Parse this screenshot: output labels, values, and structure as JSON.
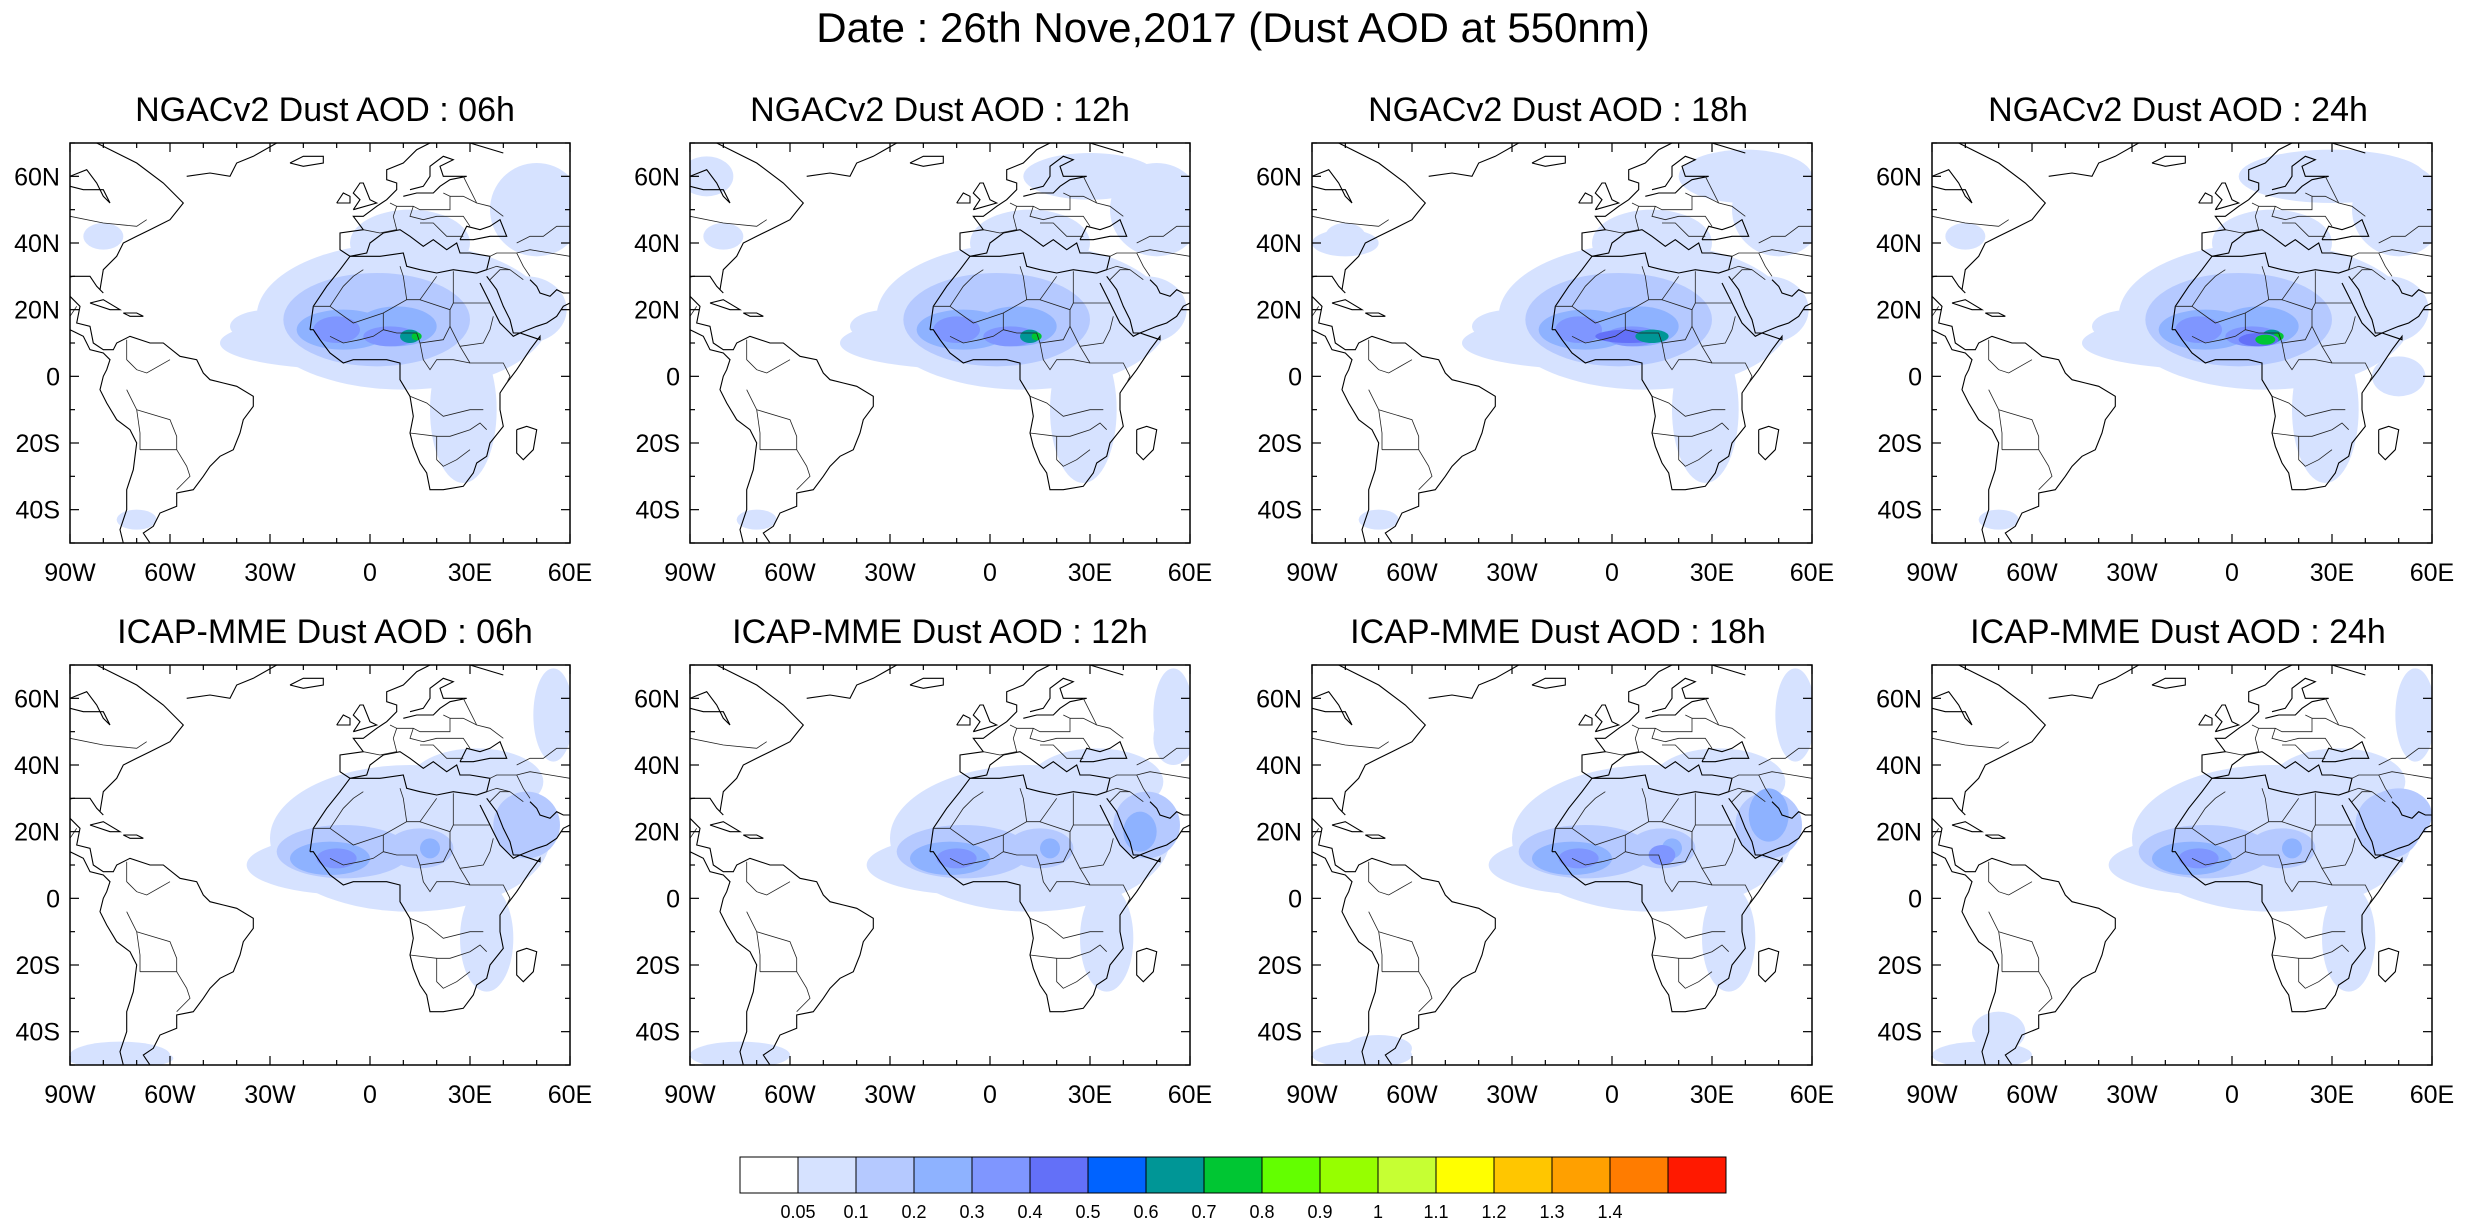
{
  "title": "Date : 26th Nove,2017 (Dust AOD at 550nm)",
  "panels": [
    {
      "title": "NGACv2 Dust AOD : 06h"
    },
    {
      "title": "NGACv2 Dust AOD : 12h"
    },
    {
      "title": "NGACv2 Dust AOD : 18h"
    },
    {
      "title": "NGACv2 Dust AOD : 24h"
    },
    {
      "title": "ICAP-MME Dust AOD : 06h"
    },
    {
      "title": "ICAP-MME Dust AOD : 12h"
    },
    {
      "title": "ICAP-MME Dust AOD : 18h"
    },
    {
      "title": "ICAP-MME Dust AOD : 24h"
    }
  ],
  "axes": {
    "lon_ticks": [
      "90W",
      "60W",
      "30W",
      "0",
      "30E",
      "60E"
    ],
    "lon_values": [
      -90,
      -60,
      -30,
      0,
      30,
      60
    ],
    "lat_ticks": [
      "60N",
      "40N",
      "20N",
      "0",
      "20S",
      "40S"
    ],
    "lat_values": [
      60,
      40,
      20,
      0,
      -20,
      -40
    ],
    "lon_range": [
      -90,
      60
    ],
    "lat_range": [
      -50,
      70
    ]
  },
  "colorbar": {
    "labels": [
      "0.05",
      "0.1",
      "0.2",
      "0.3",
      "0.4",
      "0.5",
      "0.6",
      "0.7",
      "0.8",
      "0.9",
      "1",
      "1.1",
      "1.2",
      "1.3",
      "1.4"
    ],
    "colors": [
      "#ffffff",
      "#d6e2ff",
      "#b5c9ff",
      "#8eb2ff",
      "#7f96ff",
      "#6370f8",
      "#0063ff",
      "#009696",
      "#00c633",
      "#63ff00",
      "#96ff00",
      "#c6ff33",
      "#ffff00",
      "#ffc600",
      "#ffa000",
      "#ff7c00",
      "#ff1900"
    ]
  }
}
